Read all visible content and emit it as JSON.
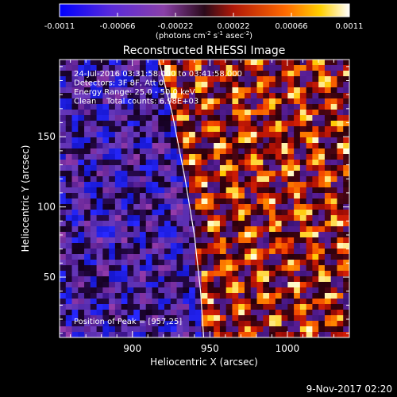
{
  "chart_data": {
    "type": "heatmap",
    "title": "Reconstructed RHESSI Image",
    "xlabel": "Heliocentric X (arcsec)",
    "ylabel": "Heliocentric Y (arcsec)",
    "xlim": [
      853,
      1040
    ],
    "ylim": [
      7,
      205
    ],
    "x_ticks": [
      900,
      950,
      1000
    ],
    "y_ticks": [
      50,
      100,
      150
    ],
    "colorbar": {
      "min": -0.0011,
      "max": 0.0011,
      "ticks": [
        "-0.0011",
        "-0.00066",
        "-0.00022",
        "0.00022",
        "0.00066",
        "0.0011"
      ],
      "unit_parts": [
        "(photons cm",
        "-2",
        " s",
        "-1",
        " asec",
        "-2",
        ")"
      ]
    },
    "annotations": [
      "24-Jul-2016 03:31:58.000 to 03:41:58.000",
      "Detectors: 3F 8F, Att 0",
      "Energy Range: 25.0 - 50.0 keV",
      "Clean    Total counts: 6.98E+03"
    ],
    "peak_label": "Position of Peak = [957,25]",
    "peak_position": [
      957,
      25
    ],
    "limb_curve": {
      "x": [
        917,
        926,
        934,
        940,
        944,
        946
      ],
      "y": [
        205,
        165,
        120,
        80,
        40,
        7
      ]
    },
    "grid_cols": 47,
    "grid_rows": 50,
    "colors": {
      "background": "#000000",
      "foreground": "#ffffff",
      "negative_low": "#1a1aff",
      "negative_mid": "#6a3bd1",
      "positive_mid": "#e0300a",
      "positive_high": "#ffffff"
    }
  },
  "footer_date": "9-Nov-2017 02:20"
}
